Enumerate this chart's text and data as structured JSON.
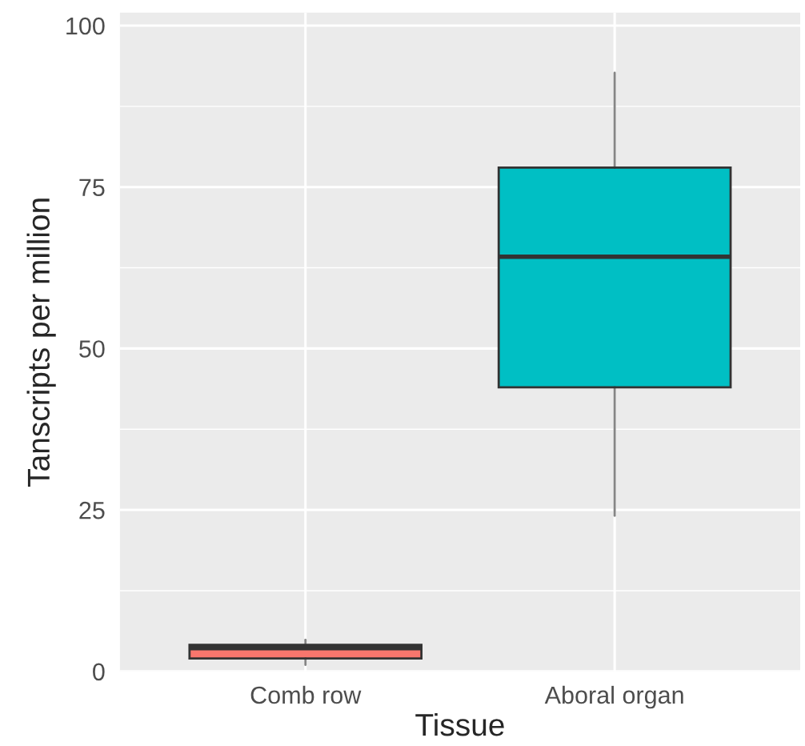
{
  "chart_data": {
    "type": "box",
    "xlabel": "Tissue",
    "ylabel": "Tanscripts per million",
    "categories": [
      "Comb row",
      "Aboral organ"
    ],
    "boxes": [
      {
        "low": 1.0,
        "q1": 2.0,
        "median": 3.6,
        "q3": 4.1,
        "high": 4.9
      },
      {
        "low": 24.1,
        "q1": 44.0,
        "median": 64.2,
        "q3": 78.0,
        "high": 92.7
      }
    ],
    "colors": [
      "#f8766d",
      "#00bfc4"
    ],
    "ylim": [
      0,
      102
    ],
    "yticks": [
      0,
      25,
      50,
      75,
      100
    ],
    "grid": true
  }
}
